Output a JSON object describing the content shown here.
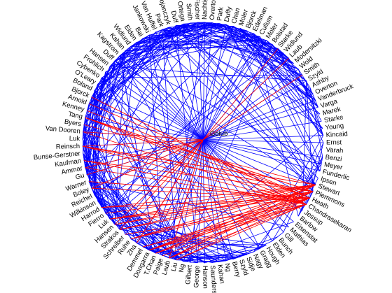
{
  "diagram": {
    "type": "circular-network",
    "center_node": "Golub",
    "colors": {
      "blue_edges": "#0000ff",
      "red_edges": "#ff0000",
      "labels": "#000000"
    },
    "nodes": [
      "Ernst",
      "Varah",
      "Benzi",
      "Meyer",
      "Funderlic",
      "Ipsen",
      "Stewart",
      "Plemmons",
      "Heath",
      "Chandrasekaran",
      "Jessup",
      "Barlow",
      "Eisenstat",
      "Mathias",
      "Gill",
      "Bunch",
      "Elden",
      "Hough",
      "Gragg",
      "Nagy",
      "Sidje",
      "Szyld",
      "Berry",
      "Ng",
      "Kahan",
      "Saunders",
      "Hanson",
      "George",
      "Gilbert",
      "Ng",
      "Liu",
      "Laub",
      "Paige",
      "T.Chan",
      "Dongarra",
      "Demmel",
      "Zha",
      "Ruhe",
      "Schreiber",
      "Strakos",
      "Hansen",
      "Luk",
      "Fierro",
      "Harrod",
      "Wilkinson",
      "Reichel",
      "Boley",
      "Warner",
      "Gu",
      "Ammar",
      "Kaufman",
      "Bunse-Gerstner",
      "Reinsch",
      "Luk",
      "Van Dooren",
      "Byers",
      "Tang",
      "Kenney",
      "Arnold",
      "Bjorck",
      "Boland",
      "O'Leary",
      "Cybenko",
      "Frohlich",
      "Hansen",
      "Duff",
      "Kagstrom",
      "Kahan",
      "Widlund",
      "Elden",
      "Bai",
      "Jankowski",
      "Van Huffel",
      "Park",
      "Bojanczyk",
      "Duff",
      "Ortega",
      "Smith",
      "Fischer",
      "Nachtigal",
      "Overton",
      "Park",
      "Duffy",
      "Chan",
      "Moler",
      "Bjorck",
      "Edelman",
      "Cullum",
      "Moler",
      "Bolstad",
      "Starke",
      "Widlund",
      "Laub",
      "Modersitzki",
      "Wold",
      "Smith",
      "Szyld",
      "Ashby",
      "Overton",
      "Vanderbruck",
      "Varga",
      "Marek",
      "Starke",
      "Young",
      "Kincaid"
    ]
  }
}
